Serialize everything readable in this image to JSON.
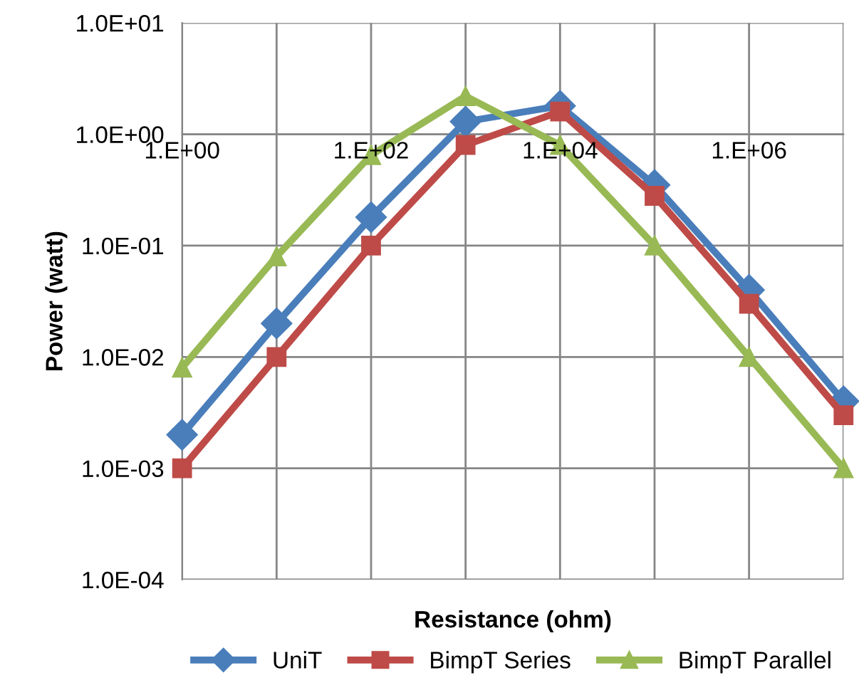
{
  "chart_data": {
    "type": "line",
    "xlabel": "Resistance (ohm)",
    "ylabel": "Power (watt)",
    "log": "y",
    "grid": true,
    "legend": "bottom",
    "categories": [
      "1.E+00",
      null,
      "1.E+02",
      null,
      "1.E+04",
      null,
      "1.E+06",
      null
    ],
    "ylim": [
      0.0001,
      10
    ],
    "yticks": [
      {
        "value": 0.0001,
        "label": "1.0E-04"
      },
      {
        "value": 0.001,
        "label": "1.0E-03"
      },
      {
        "value": 0.01,
        "label": "1.0E-02"
      },
      {
        "value": 0.1,
        "label": "1.0E-01"
      },
      {
        "value": 1,
        "label": "1.0E+00"
      },
      {
        "value": 10,
        "label": "1.0E+01"
      }
    ],
    "series": [
      {
        "name": "UniT",
        "color": "#4a7ebb",
        "marker": "diamond",
        "values": [
          0.002,
          0.02,
          0.18,
          1.3,
          1.8,
          0.35,
          0.04,
          0.004
        ]
      },
      {
        "name": "BimpT Series",
        "color": "#be4b48",
        "marker": "square",
        "values": [
          0.001,
          0.01,
          0.1,
          0.8,
          1.6,
          0.28,
          0.03,
          0.003
        ]
      },
      {
        "name": "BimpT Parallel",
        "color": "#98b954",
        "marker": "triangle",
        "values": [
          0.008,
          0.08,
          0.65,
          2.2,
          0.8,
          0.1,
          0.01,
          0.001
        ]
      }
    ]
  }
}
